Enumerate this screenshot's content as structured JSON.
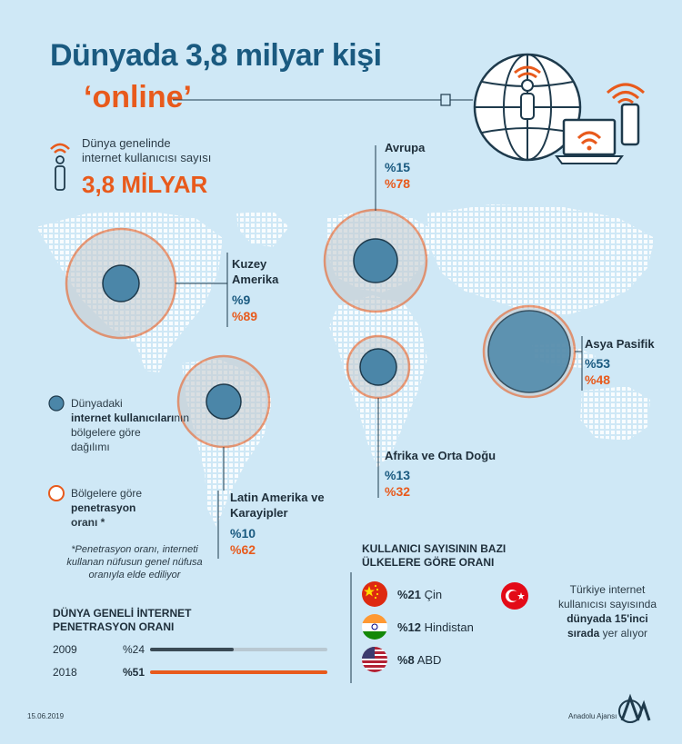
{
  "title": "Dünyada 3,8 milyar kişi",
  "subtitle": "‘online’",
  "intro": {
    "line1": "Dünya genelinde",
    "line2": "internet kullanıcısı sayısı",
    "value": "3,8 MİLYAR"
  },
  "regions": [
    {
      "name1": "Avrupa",
      "name2": "",
      "users_pct": "%15",
      "penetration_pct": "%78"
    },
    {
      "name1": "Kuzey",
      "name2": "Amerika",
      "users_pct": "%9",
      "penetration_pct": "%89"
    },
    {
      "name1": "Asya Pasifik",
      "name2": "",
      "users_pct": "%53",
      "penetration_pct": "%48"
    },
    {
      "name1": "Afrika ve Orta Doğu",
      "name2": "",
      "users_pct": "%13",
      "penetration_pct": "%32"
    },
    {
      "name1": "Latin Amerika ve",
      "name2": "Karayipler",
      "users_pct": "%10",
      "penetration_pct": "%62"
    }
  ],
  "legend": {
    "users": {
      "line1": "Dünyadaki",
      "bold": "internet kullanıcıları",
      "suffix": "nın",
      "line3": "bölgelere göre",
      "line4": "dağılımı"
    },
    "penetration": {
      "line1": "Bölgelere göre",
      "bold": "penetrasyon",
      "line3": "oranı *"
    }
  },
  "note": "*Penetrasyon oranı, interneti kullanan nüfusun genel nüfusa oranıyla elde ediliyor",
  "global": {
    "title1": "DÜNYA GENELİ İNTERNET",
    "title2": "PENETRASYON ORANI",
    "rows": [
      {
        "year": "2009",
        "label": "%24",
        "value": 24
      },
      {
        "year": "2018",
        "label": "%51",
        "value": 51
      }
    ]
  },
  "countries": {
    "title1": "KULLANICI SAYISININ BAZI",
    "title2": "ÜLKELERE GÖRE ORANI",
    "items": [
      {
        "pct": "%21",
        "name": "Çin",
        "flag": "china-flag-icon"
      },
      {
        "pct": "%12",
        "name": "Hindistan",
        "flag": "india-flag-icon"
      },
      {
        "pct": "%8",
        "name": "ABD",
        "flag": "usa-flag-icon"
      }
    ]
  },
  "turkey": {
    "line1": "Türkiye internet",
    "line2": "kullanıcısı sayısında",
    "bold": "dünyada 15'inci",
    "bold2": "sırada",
    "suffix": " yer alıyor"
  },
  "footer": {
    "date": "15.06.2019",
    "agency": "Anadolu Ajansı"
  },
  "colors": {
    "blue": "#1a5a80",
    "orange": "#e85a1c",
    "background": "#cfe8f6",
    "bubble": "#4b86a8"
  }
}
